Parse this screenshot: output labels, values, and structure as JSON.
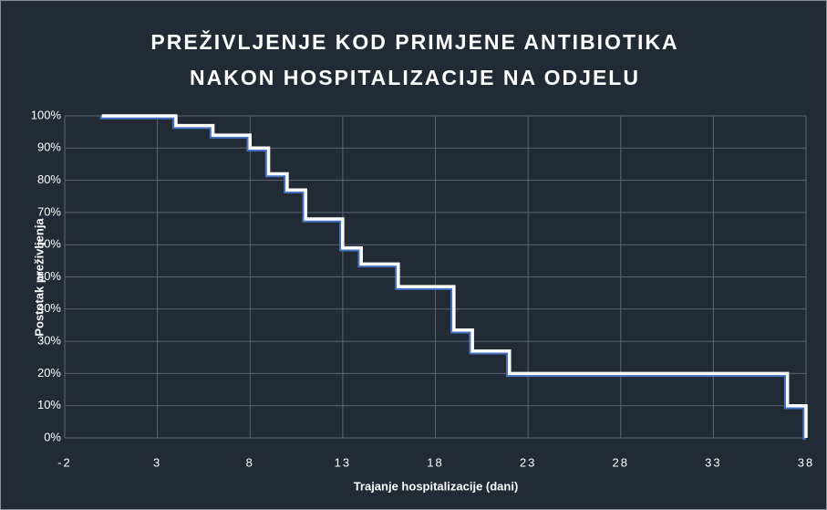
{
  "chart_data": {
    "type": "step",
    "title": [
      "PREŽIVLJENJE KOD PRIMJENE ANTIBIOTIKA",
      "NAKON HOSPITALIZACIJE NA ODJELU"
    ],
    "xlabel": "Trajanje hospitalizacije (dani)",
    "ylabel": "Postotak preživljenja",
    "x": [
      0,
      4,
      6,
      8,
      9,
      10,
      11,
      13,
      14,
      16,
      19,
      20,
      22,
      37,
      38
    ],
    "series": [
      {
        "color": "#4472c4",
        "values": [
          100,
          97,
          94,
          90,
          82,
          77,
          68,
          59,
          54,
          47,
          33.5,
          27,
          20,
          10,
          0
        ]
      }
    ],
    "line_color": "#ffffff",
    "xlim": [
      -2,
      38
    ],
    "xticks": [
      -2,
      3,
      8,
      13,
      18,
      23,
      28,
      33,
      38
    ],
    "ylim": [
      0,
      100
    ],
    "yticks": [
      {
        "value": 0,
        "label": "0%"
      },
      {
        "value": 10,
        "label": "10%"
      },
      {
        "value": 20,
        "label": "20%"
      },
      {
        "value": 30,
        "label": "30%"
      },
      {
        "value": 40,
        "label": "40%"
      },
      {
        "value": 50,
        "label": "50%"
      },
      {
        "value": 60,
        "label": "60%"
      },
      {
        "value": 70,
        "label": "70%"
      },
      {
        "value": 80,
        "label": "80%"
      },
      {
        "value": 90,
        "label": "90%"
      },
      {
        "value": 100,
        "label": "100%"
      }
    ],
    "grid": true
  }
}
